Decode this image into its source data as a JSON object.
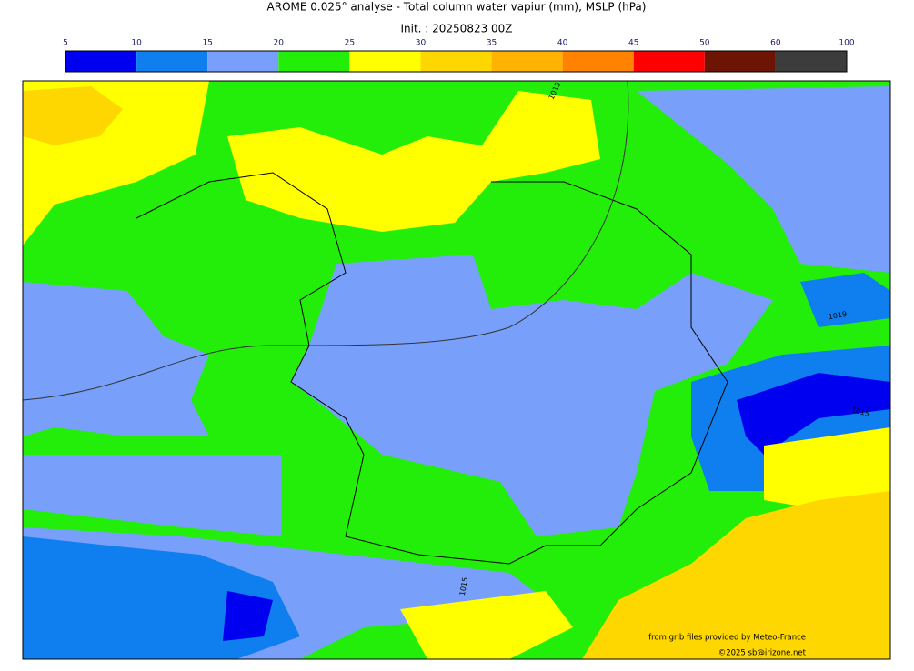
{
  "header": {
    "title": "AROME 0.025° analyse - Total column water vapiur (mm), MSLP (hPa)",
    "init": "Init. : 20250823 00Z"
  },
  "colorbar": {
    "ticks": [
      5,
      10,
      15,
      20,
      25,
      30,
      35,
      40,
      45,
      50,
      60,
      100
    ],
    "colors": [
      "#0000f0",
      "#0f7ff0",
      "#78a0fa",
      "#22ee0a",
      "#ffff00",
      "#ffd700",
      "#ffb300",
      "#ff8200",
      "#ff0000",
      "#6e1405",
      "#3c3c3c"
    ]
  },
  "isobar_labels": [
    "1015",
    "1019",
    "1015",
    "1015"
  ],
  "credits": [
    "from grib files provided by Meteo-France",
    "©2025 sb@irizone.net"
  ]
}
